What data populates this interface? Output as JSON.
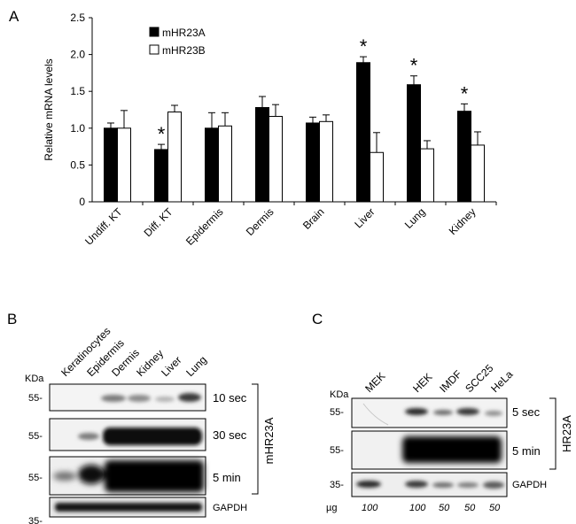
{
  "panelA": {
    "letter": "A",
    "chart_data": {
      "type": "bar",
      "ylabel": "Relative mRNA levels",
      "ylim": [
        0,
        2.5
      ],
      "yticks": [
        "0",
        "0.5",
        "1.0",
        "1.5",
        "2.0",
        "2.5"
      ],
      "categories": [
        "Undiff. KT",
        "Diff. KT",
        "Epidermis",
        "Dermis",
        "Brain",
        "Liver",
        "Lung",
        "Kidney"
      ],
      "series": [
        {
          "name": "mHR23A",
          "color": "#000000",
          "values": [
            1.0,
            0.71,
            1.0,
            1.28,
            1.07,
            1.89,
            1.59,
            1.23
          ],
          "errors": [
            0.07,
            0.07,
            0.21,
            0.15,
            0.08,
            0.08,
            0.12,
            0.1
          ]
        },
        {
          "name": "mHR23B",
          "color": "#ffffff",
          "values": [
            1.0,
            1.22,
            1.03,
            1.16,
            1.09,
            0.67,
            0.72,
            0.77
          ],
          "errors": [
            0.24,
            0.09,
            0.18,
            0.16,
            0.09,
            0.27,
            0.11,
            0.18
          ]
        }
      ],
      "significance": [
        "",
        "*",
        "",
        "",
        "",
        "*",
        "*",
        "*"
      ],
      "legend": "top-left"
    }
  },
  "panelB": {
    "letter": "B",
    "kda_label": "KDa",
    "lanes": [
      "Keratinocytes",
      "Epidermis",
      "Dermis",
      "Kidney",
      "Liver",
      "Lung"
    ],
    "exposures": [
      "10 sec",
      "30 sec",
      "5 min"
    ],
    "markers": [
      "55-",
      "55-",
      "55-",
      "35-"
    ],
    "antibody": "mHR23A",
    "loading": "GAPDH"
  },
  "panelC": {
    "letter": "C",
    "kda_label": "KDa",
    "lanes": [
      "MEK",
      "HEK",
      "IMDF",
      "SCC25",
      "HeLa"
    ],
    "exposures": [
      "5 sec",
      "5 min"
    ],
    "markers": [
      "55-",
      "55-",
      "35-"
    ],
    "antibody": "HR23A",
    "loading": "GAPDH",
    "ug_label": "µg",
    "amounts": [
      "100",
      "100",
      "50",
      "50",
      "50"
    ]
  }
}
